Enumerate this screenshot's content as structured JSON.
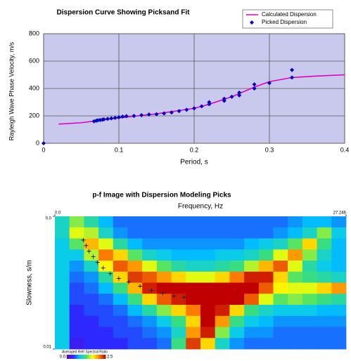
{
  "chart_data": [
    {
      "type": "line",
      "title": "Dispersion Curve Showing Picksand Fit",
      "xlabel": "Period, s",
      "ylabel": "Rayleigh Wave Phase Velocity, m/s",
      "xlim": [
        0,
        0.4
      ],
      "xticks": [
        0,
        0.1,
        0.2,
        0.3,
        0.4
      ],
      "ylim": [
        0,
        800
      ],
      "yticks": [
        0,
        200,
        400,
        600,
        800
      ],
      "grid": true,
      "background": "#c9c9ee",
      "legend": "top-right",
      "series": [
        {
          "name": "Calculated Dispersion",
          "color": "#e000c0",
          "style": "line",
          "x": [
            0.02,
            0.05,
            0.1,
            0.15,
            0.2,
            0.22,
            0.25,
            0.28,
            0.3,
            0.33,
            0.36,
            0.4
          ],
          "values": [
            140,
            150,
            185,
            215,
            255,
            285,
            340,
            410,
            450,
            480,
            490,
            500
          ]
        },
        {
          "name": "Picked Dispersion",
          "color": "#0000c0",
          "style": "markers",
          "x": [
            0,
            0.067,
            0.07,
            0.072,
            0.075,
            0.078,
            0.08,
            0.085,
            0.09,
            0.095,
            0.1,
            0.105,
            0.11,
            0.12,
            0.13,
            0.14,
            0.15,
            0.16,
            0.17,
            0.18,
            0.19,
            0.2,
            0.21,
            0.22,
            0.22,
            0.24,
            0.24,
            0.25,
            0.26,
            0.26,
            0.28,
            0.28,
            0.3,
            0.33,
            0.33
          ],
          "values": [
            0,
            160,
            165,
            168,
            170,
            172,
            175,
            178,
            182,
            186,
            190,
            195,
            198,
            200,
            205,
            210,
            212,
            218,
            225,
            235,
            245,
            255,
            270,
            285,
            300,
            310,
            325,
            340,
            370,
            350,
            400,
            430,
            440,
            480,
            535
          ]
        }
      ]
    },
    {
      "type": "heatmap",
      "title": "p-f Image with Dispersion Modeling Picks",
      "xlabel": "Frequency, Hz",
      "ylabel": "Slowness, s/m",
      "xlim": [
        0,
        27.246
      ],
      "xticks": [
        {
          "value": 0,
          "label": "0.0"
        },
        27.246
      ],
      "ylim": [
        0,
        0.01
      ],
      "yticks": [
        {
          "value": 0,
          "label": "0.0"
        },
        0.01
      ],
      "colorbar_label": "Averaged Refr Spectral Ratio",
      "clim": [
        0,
        2.5
      ],
      "cticks": [
        {
          "value": 0,
          "label": "0.0"
        },
        2.5
      ],
      "colors": [
        "#6a00c8",
        "#2a2aff",
        "#00c8ff",
        "#40e070",
        "#ffff00",
        "#ff8000",
        "#c00000"
      ],
      "z": [
        [
          1.0,
          1.4,
          1.1,
          0.8,
          0.6,
          0.6,
          0.6,
          0.6,
          0.6,
          0.6,
          0.6,
          0.6,
          0.6,
          0.6,
          0.6,
          0.6,
          0.7,
          0.8,
          0.8,
          0.7
        ],
        [
          1.0,
          1.6,
          1.5,
          1.0,
          0.7,
          0.6,
          0.6,
          0.6,
          0.6,
          0.6,
          0.6,
          0.6,
          0.6,
          0.6,
          0.6,
          0.7,
          0.8,
          1.0,
          1.4,
          0.9
        ],
        [
          0.9,
          1.3,
          1.9,
          1.6,
          1.1,
          0.8,
          0.7,
          0.7,
          0.7,
          0.7,
          0.7,
          0.7,
          0.7,
          0.8,
          0.9,
          1.0,
          1.3,
          1.8,
          1.2,
          0.8
        ],
        [
          0.9,
          0.9,
          1.5,
          2.1,
          1.8,
          1.3,
          1.0,
          0.9,
          0.8,
          0.8,
          0.8,
          0.9,
          0.9,
          1.0,
          1.2,
          1.6,
          2.0,
          1.4,
          1.0,
          0.8
        ],
        [
          0.9,
          0.7,
          1.0,
          1.7,
          2.2,
          2.0,
          1.6,
          1.3,
          1.1,
          1.0,
          1.0,
          1.1,
          1.2,
          1.5,
          1.9,
          2.2,
          1.6,
          1.1,
          0.9,
          0.8
        ],
        [
          0.9,
          0.6,
          0.7,
          1.1,
          1.8,
          2.3,
          2.2,
          2.0,
          1.8,
          1.6,
          1.6,
          1.8,
          2.1,
          2.4,
          2.4,
          1.8,
          1.3,
          1.2,
          1.1,
          1.0
        ],
        [
          0.9,
          0.5,
          0.6,
          0.8,
          1.2,
          1.9,
          2.4,
          2.5,
          2.5,
          2.5,
          2.5,
          2.5,
          2.5,
          2.5,
          2.2,
          1.7,
          1.6,
          1.6,
          1.8,
          2.0
        ],
        [
          0.9,
          0.5,
          0.5,
          0.6,
          0.8,
          1.2,
          1.8,
          2.2,
          2.4,
          2.5,
          2.5,
          2.5,
          2.5,
          2.2,
          1.6,
          1.3,
          1.4,
          1.3,
          1.2,
          1.1
        ],
        [
          0.9,
          0.4,
          0.5,
          0.5,
          0.6,
          0.8,
          1.1,
          1.4,
          1.8,
          2.1,
          2.5,
          2.4,
          1.8,
          1.2,
          1.0,
          0.9,
          0.9,
          0.9,
          0.8,
          0.8
        ],
        [
          0.9,
          0.4,
          0.4,
          0.5,
          0.5,
          0.6,
          0.7,
          0.9,
          1.2,
          1.8,
          2.5,
          2.0,
          1.2,
          0.9,
          0.8,
          0.7,
          0.7,
          0.7,
          0.7,
          0.7
        ],
        [
          0.9,
          0.4,
          0.4,
          0.4,
          0.5,
          0.5,
          0.6,
          0.7,
          1.0,
          2.0,
          2.4,
          1.4,
          0.9,
          0.7,
          0.7,
          0.6,
          0.6,
          0.6,
          0.6,
          0.6
        ],
        [
          0.9,
          0.3,
          0.4,
          0.4,
          0.4,
          0.5,
          0.5,
          0.6,
          1.2,
          2.3,
          1.8,
          1.0,
          0.7,
          0.6,
          0.6,
          0.6,
          0.6,
          0.6,
          0.6,
          0.6
        ]
      ],
      "picks": {
        "x": [
          2.66,
          2.92,
          3.19,
          3.59,
          3.99,
          4.52,
          5.18,
          5.98,
          6.91,
          7.97,
          9.04,
          10.1,
          11.16,
          12.09
        ],
        "y": [
          0.00179,
          0.00221,
          0.00263,
          0.00305,
          0.00347,
          0.00389,
          0.00432,
          0.00468,
          0.00495,
          0.00526,
          0.00558,
          0.00579,
          0.006,
          0.0061
        ]
      }
    }
  ]
}
